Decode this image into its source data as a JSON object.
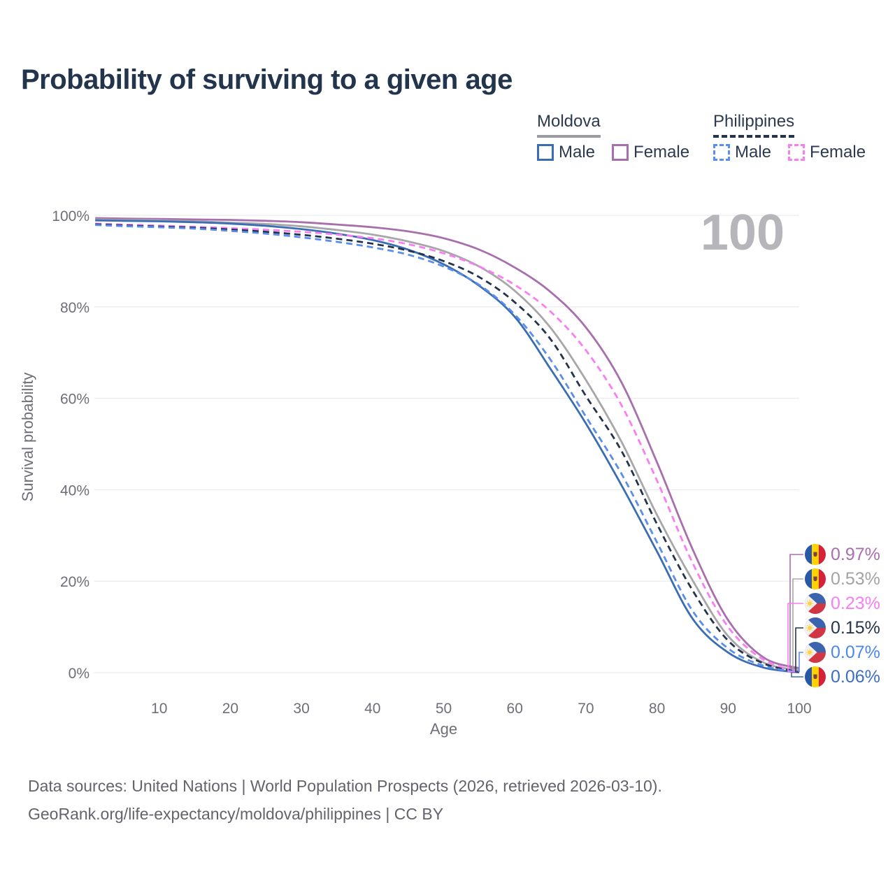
{
  "title": "Probability of surviving to a given age",
  "legend": {
    "groups": [
      {
        "country": "Moldova",
        "line_style": "solid",
        "line_color": "#9b9ba1",
        "items": [
          {
            "label": "Male",
            "color": "#3a6db3",
            "dash": false
          },
          {
            "label": "Female",
            "color": "#a86fad",
            "dash": false
          }
        ]
      },
      {
        "country": "Philippines",
        "line_style": "dashed",
        "line_color": "#24344d",
        "items": [
          {
            "label": "Male",
            "color": "#5b8ded",
            "dash": true
          },
          {
            "label": "Female",
            "color": "#f97ef2",
            "dash": true
          }
        ]
      }
    ]
  },
  "watermark_age": "100",
  "chart_data": {
    "type": "line",
    "title": "Probability of surviving to a given age",
    "xlabel": "Age",
    "ylabel": "Survival probability",
    "xlim": [
      0,
      100
    ],
    "ylim_pct": [
      0,
      100
    ],
    "grid": "horizontal",
    "x_ticks": [
      10,
      20,
      30,
      40,
      50,
      60,
      70,
      80,
      90,
      100
    ],
    "y_ticks": [
      "0%",
      "20%",
      "40%",
      "60%",
      "80%",
      "100%"
    ],
    "legend_position": "top-right",
    "ages": [
      1,
      5,
      10,
      15,
      20,
      25,
      30,
      35,
      40,
      45,
      50,
      55,
      60,
      65,
      70,
      75,
      80,
      85,
      90,
      95,
      100
    ],
    "series": [
      {
        "name": "Moldova Female",
        "country": "Moldova",
        "sex": "Female",
        "color": "#a86fad",
        "dash": false,
        "values": [
          99.4,
          99.3,
          99.2,
          99.1,
          99.0,
          98.8,
          98.5,
          98.0,
          97.4,
          96.5,
          95.0,
          92.5,
          88.6,
          83.3,
          75.5,
          63.5,
          46.0,
          27.0,
          11.5,
          3.3,
          0.97
        ],
        "end_label": "0.97%",
        "end_label_index": 0
      },
      {
        "name": "Moldova",
        "country": "Moldova",
        "sex": "Both",
        "color": "#a7a7a9",
        "dash": false,
        "values": [
          99.1,
          99.0,
          98.9,
          98.7,
          98.4,
          98.1,
          97.6,
          96.8,
          95.8,
          94.3,
          92.2,
          88.8,
          83.5,
          75.5,
          64.0,
          50.5,
          34.5,
          20.2,
          8.0,
          2.2,
          0.53
        ],
        "end_label": "0.53%",
        "end_label_index": 1
      },
      {
        "name": "Moldova Male",
        "country": "Moldova",
        "sex": "Male",
        "color": "#3a6db3",
        "dash": false,
        "values": [
          98.9,
          98.8,
          98.7,
          98.5,
          98.2,
          97.7,
          97.0,
          96.0,
          94.6,
          92.5,
          89.3,
          84.6,
          77.8,
          66.5,
          54.5,
          41.0,
          26.5,
          11.8,
          4.4,
          1.1,
          0.06
        ],
        "end_label": "0.06%",
        "end_label_index": 5
      },
      {
        "name": "Philippines Female",
        "country": "Philippines",
        "sex": "Female",
        "color": "#f97ef2",
        "dash": true,
        "values": [
          98.2,
          98.0,
          97.75,
          97.5,
          97.2,
          96.85,
          96.4,
          95.8,
          95.0,
          93.7,
          91.7,
          88.8,
          84.8,
          79.0,
          70.5,
          58.5,
          42.0,
          24.0,
          10.0,
          2.8,
          0.23
        ],
        "end_label": "0.23%",
        "end_label_index": 2
      },
      {
        "name": "Philippines",
        "country": "Philippines",
        "sex": "Both",
        "color": "#24344d",
        "dash": true,
        "values": [
          98.05,
          97.8,
          97.55,
          97.3,
          96.9,
          96.4,
          95.75,
          94.9,
          93.8,
          92.3,
          90.0,
          86.5,
          81.0,
          73.0,
          60.5,
          48.5,
          32.5,
          18.0,
          7.0,
          2.0,
          0.15
        ],
        "end_label": "0.15%",
        "end_label_index": 3
      },
      {
        "name": "Philippines Male",
        "country": "Philippines",
        "sex": "Male",
        "color": "#5b8ded",
        "dash": true,
        "values": [
          97.9,
          97.65,
          97.4,
          97.1,
          96.6,
          96.0,
          95.2,
          94.2,
          93.0,
          91.4,
          88.8,
          84.8,
          78.3,
          68.5,
          56.0,
          43.5,
          28.5,
          13.5,
          5.3,
          1.5,
          0.07
        ],
        "end_label": "0.07%",
        "end_label_index": 4
      }
    ]
  },
  "end_labels": [
    {
      "value": "0.97%",
      "color": "#a86fad",
      "flag": "moldova",
      "series": "Moldova Female"
    },
    {
      "value": "0.53%",
      "color": "#a3a3a3",
      "flag": "moldova",
      "series": "Moldova"
    },
    {
      "value": "0.23%",
      "color": "#f97ef2",
      "flag": "philippines",
      "series": "Philippines Female"
    },
    {
      "value": "0.15%",
      "color": "#26354a",
      "flag": "philippines",
      "series": "Philippines"
    },
    {
      "value": "0.07%",
      "color": "#4d87ea",
      "flag": "philippines",
      "series": "Philippines Male"
    },
    {
      "value": "0.06%",
      "color": "#3b6fc0",
      "flag": "moldova",
      "series": "Moldova Male"
    }
  ],
  "footer": {
    "line1": "Data sources: United Nations | World Population Prospects (2026, retrieved 2026-03-10).",
    "line2": "GeoRank.org/life-expectancy/moldova/philippines | CC BY"
  }
}
